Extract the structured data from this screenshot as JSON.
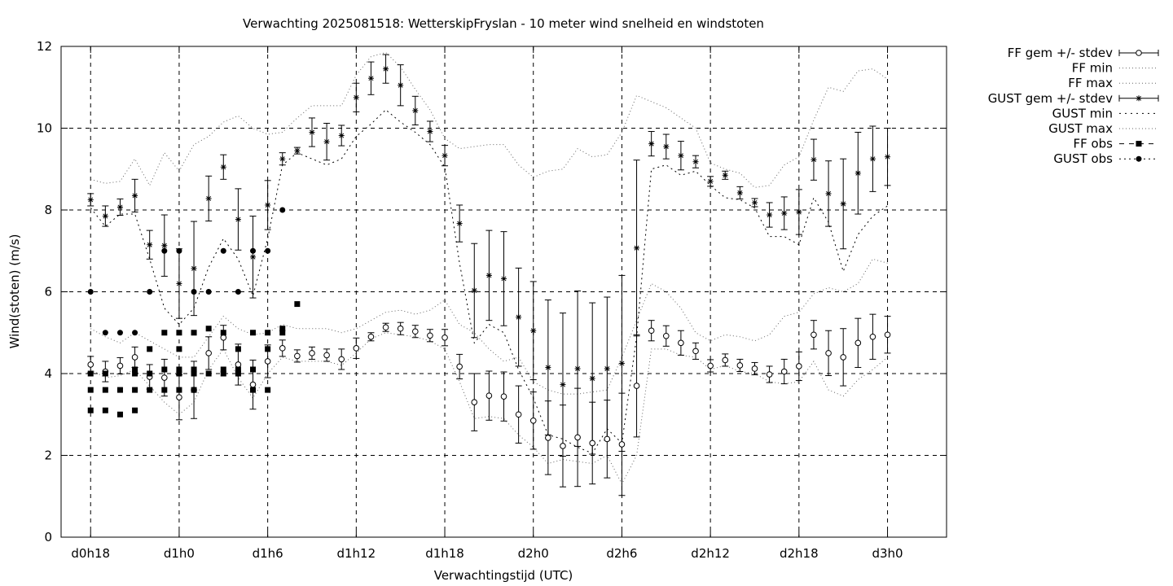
{
  "chart_data": {
    "type": "line",
    "title": "Verwachting 2025081518: WetterskipFryslan - 10 meter wind snelheid en windstoten",
    "xlabel": "Verwachtingstijd (UTC)",
    "ylabel": "Wind(stoten) (m/s)",
    "ylim": [
      0,
      12
    ],
    "xlim": [
      16,
      90
    ],
    "x_unit": "hours since forecast base",
    "yticks": [
      0,
      2,
      4,
      6,
      8,
      10,
      12
    ],
    "xticks": [
      {
        "x": 18,
        "label": "d0h18"
      },
      {
        "x": 24,
        "label": "d1h0"
      },
      {
        "x": 30,
        "label": "d1h6"
      },
      {
        "x": 36,
        "label": "d1h12"
      },
      {
        "x": 42,
        "label": "d1h18"
      },
      {
        "x": 48,
        "label": "d2h0"
      },
      {
        "x": 54,
        "label": "d2h6"
      },
      {
        "x": 60,
        "label": "d2h12"
      },
      {
        "x": 66,
        "label": "d2h18"
      },
      {
        "x": 72,
        "label": "d3h0"
      }
    ],
    "grid": true,
    "legend_position": "outside-top-right",
    "legend": [
      {
        "label": "FF gem +/- stdev",
        "style": "errorbar-circle"
      },
      {
        "label": "FF min",
        "style": "dotted"
      },
      {
        "label": "FF max",
        "style": "dotted"
      },
      {
        "label": "GUST gem +/- stdev",
        "style": "errorbar-star"
      },
      {
        "label": "GUST min",
        "style": "dotted-coarse"
      },
      {
        "label": "GUST max",
        "style": "dotted"
      },
      {
        "label": "FF obs",
        "style": "dashed-square"
      },
      {
        "label": "GUST obs",
        "style": "dotted-circle"
      }
    ],
    "x": [
      18,
      19,
      20,
      21,
      22,
      23,
      24,
      25,
      26,
      27,
      28,
      29,
      30,
      31,
      32,
      33,
      34,
      35,
      36,
      37,
      38,
      39,
      40,
      41,
      42,
      43,
      44,
      45,
      46,
      47,
      48,
      49,
      50,
      51,
      52,
      53,
      54,
      55,
      56,
      57,
      58,
      59,
      60,
      61,
      62,
      63,
      64,
      65,
      66,
      67,
      68,
      69,
      70,
      71,
      72
    ],
    "series": [
      {
        "name": "FF gem +/- stdev",
        "mean": [
          4.22,
          4.05,
          4.19,
          4.4,
          3.92,
          3.9,
          3.42,
          3.6,
          4.5,
          4.88,
          4.22,
          3.73,
          4.3,
          4.62,
          4.43,
          4.5,
          4.45,
          4.35,
          4.62,
          4.9,
          5.13,
          5.1,
          5.03,
          4.93,
          4.88,
          4.17,
          3.3,
          3.46,
          3.44,
          3.0,
          2.85,
          2.43,
          2.23,
          2.44,
          2.3,
          2.4,
          2.27,
          3.7,
          5.05,
          4.92,
          4.75,
          4.55,
          4.19,
          4.33,
          4.2,
          4.12,
          3.98,
          4.05,
          4.18,
          4.95,
          4.5,
          4.4,
          4.75,
          4.9,
          4.95
        ],
        "stdev": [
          0.2,
          0.25,
          0.2,
          0.25,
          0.3,
          0.45,
          0.55,
          0.7,
          0.4,
          0.3,
          0.5,
          0.6,
          0.4,
          0.2,
          0.15,
          0.15,
          0.15,
          0.25,
          0.25,
          0.1,
          0.1,
          0.15,
          0.15,
          0.15,
          0.2,
          0.3,
          0.7,
          0.6,
          0.6,
          0.7,
          0.7,
          0.9,
          1.0,
          1.2,
          1.0,
          0.95,
          1.25,
          1.25,
          0.25,
          0.25,
          0.3,
          0.2,
          0.15,
          0.15,
          0.15,
          0.15,
          0.2,
          0.3,
          0.35,
          0.35,
          0.55,
          0.7,
          0.6,
          0.55,
          0.45
        ]
      },
      {
        "name": "FF min",
        "values": [
          4.1,
          3.9,
          3.95,
          4.1,
          3.7,
          3.3,
          3.0,
          3.3,
          4.1,
          4.6,
          3.9,
          3.4,
          4.0,
          4.4,
          4.3,
          4.3,
          4.3,
          4.2,
          4.5,
          4.85,
          5.0,
          4.95,
          4.9,
          4.8,
          4.6,
          3.8,
          2.9,
          2.95,
          2.9,
          2.5,
          2.2,
          1.8,
          1.9,
          1.85,
          1.8,
          2.0,
          1.3,
          2.0,
          4.6,
          4.6,
          4.45,
          4.4,
          4.1,
          4.2,
          4.05,
          4.0,
          3.8,
          3.75,
          3.8,
          4.3,
          3.6,
          3.45,
          3.85,
          4.1,
          4.4
        ]
      },
      {
        "name": "FF max",
        "values": [
          5.1,
          4.9,
          4.75,
          5.0,
          4.8,
          4.6,
          4.4,
          4.4,
          4.9,
          5.4,
          5.1,
          4.95,
          5.0,
          5.2,
          5.1,
          5.1,
          5.1,
          5.0,
          5.1,
          5.3,
          5.5,
          5.55,
          5.45,
          5.55,
          5.8,
          5.2,
          5.0,
          4.6,
          4.3,
          4.4,
          3.8,
          3.6,
          3.5,
          3.5,
          3.55,
          3.6,
          4.4,
          5.3,
          6.2,
          6.0,
          5.6,
          5.0,
          4.8,
          4.95,
          4.9,
          4.8,
          4.95,
          5.4,
          5.5,
          5.95,
          6.1,
          6.0,
          6.2,
          6.8,
          6.7
        ]
      },
      {
        "name": "GUST gem +/- stdev",
        "mean": [
          8.25,
          7.85,
          8.07,
          8.35,
          7.15,
          7.13,
          6.2,
          6.57,
          8.28,
          9.05,
          7.77,
          6.85,
          8.12,
          9.25,
          9.45,
          9.9,
          9.67,
          9.82,
          10.75,
          11.22,
          11.45,
          11.05,
          10.43,
          9.92,
          9.33,
          7.67,
          6.03,
          6.4,
          6.32,
          5.38,
          5.05,
          4.15,
          3.73,
          4.12,
          3.88,
          4.12,
          4.25,
          7.07,
          9.62,
          9.55,
          9.33,
          9.18,
          8.7,
          8.85,
          8.42,
          8.18,
          7.88,
          7.92,
          7.95,
          9.23,
          8.4,
          8.15,
          8.9,
          9.25,
          9.3
        ]
      },
      {
        "name": "GUST min",
        "values": [
          8.05,
          7.6,
          7.9,
          7.9,
          6.8,
          5.6,
          5.2,
          5.6,
          6.6,
          7.3,
          6.8,
          5.9,
          7.3,
          9.1,
          9.4,
          9.25,
          9.1,
          9.25,
          9.8,
          10.1,
          10.45,
          10.15,
          9.9,
          9.6,
          9.05,
          6.7,
          4.75,
          5.2,
          5.0,
          4.1,
          3.4,
          2.5,
          2.4,
          2.2,
          2.05,
          2.65,
          2.3,
          4.9,
          9.0,
          9.1,
          8.85,
          8.95,
          8.6,
          8.3,
          8.25,
          8.05,
          7.35,
          7.35,
          7.15,
          8.3,
          7.7,
          6.5,
          7.4,
          7.85,
          8.1
        ]
      },
      {
        "name": "GUST max",
        "values": [
          8.75,
          8.65,
          8.7,
          9.25,
          8.6,
          9.4,
          8.95,
          9.6,
          9.8,
          10.15,
          10.3,
          10.0,
          9.85,
          9.9,
          10.25,
          10.55,
          10.55,
          10.55,
          11.3,
          11.75,
          11.85,
          11.5,
          10.95,
          10.45,
          9.75,
          9.5,
          9.55,
          9.6,
          9.6,
          9.1,
          8.8,
          8.95,
          9.0,
          9.5,
          9.3,
          9.35,
          9.9,
          10.8,
          10.65,
          10.5,
          10.25,
          10.0,
          9.15,
          9.0,
          8.9,
          8.55,
          8.6,
          9.1,
          9.3,
          10.2,
          11.0,
          10.9,
          11.4,
          11.45,
          11.2
        ]
      },
      {
        "name": "FF obs",
        "points": [
          [
            18,
            3.1
          ],
          [
            18,
            3.6
          ],
          [
            18,
            4.0
          ],
          [
            19,
            3.1
          ],
          [
            19,
            3.6
          ],
          [
            19,
            4.0
          ],
          [
            20,
            3.0
          ],
          [
            20,
            3.6
          ],
          [
            21,
            3.1
          ],
          [
            21,
            3.6
          ],
          [
            21,
            4.0
          ],
          [
            21,
            4.1
          ],
          [
            22,
            3.6
          ],
          [
            22,
            4.0
          ],
          [
            22,
            4.6
          ],
          [
            23,
            3.6
          ],
          [
            23,
            4.1
          ],
          [
            23,
            5.0
          ],
          [
            24,
            3.6
          ],
          [
            24,
            4.0
          ],
          [
            24,
            4.1
          ],
          [
            24,
            4.6
          ],
          [
            24,
            5.0
          ],
          [
            25,
            3.6
          ],
          [
            25,
            4.0
          ],
          [
            25,
            4.1
          ],
          [
            25,
            5.0
          ],
          [
            26,
            4.0
          ],
          [
            26,
            5.1
          ],
          [
            27,
            4.0
          ],
          [
            27,
            4.1
          ],
          [
            27,
            5.0
          ],
          [
            28,
            4.0
          ],
          [
            28,
            4.1
          ],
          [
            28,
            4.6
          ],
          [
            29,
            3.6
          ],
          [
            29,
            4.1
          ],
          [
            29,
            5.0
          ],
          [
            30,
            3.6
          ],
          [
            30,
            4.6
          ],
          [
            30,
            5.0
          ],
          [
            31,
            5.0
          ],
          [
            31,
            5.1
          ],
          [
            32,
            5.7
          ]
        ]
      },
      {
        "name": "GUST obs",
        "points": [
          [
            18,
            6.0
          ],
          [
            19,
            5.0
          ],
          [
            20,
            5.0
          ],
          [
            21,
            5.0
          ],
          [
            22,
            6.0
          ],
          [
            23,
            7.0
          ],
          [
            24,
            7.0
          ],
          [
            25,
            6.0
          ],
          [
            26,
            6.0
          ],
          [
            27,
            7.0
          ],
          [
            28,
            6.0
          ],
          [
            29,
            7.0
          ],
          [
            30,
            7.0
          ],
          [
            31,
            8.0
          ]
        ]
      }
    ]
  }
}
